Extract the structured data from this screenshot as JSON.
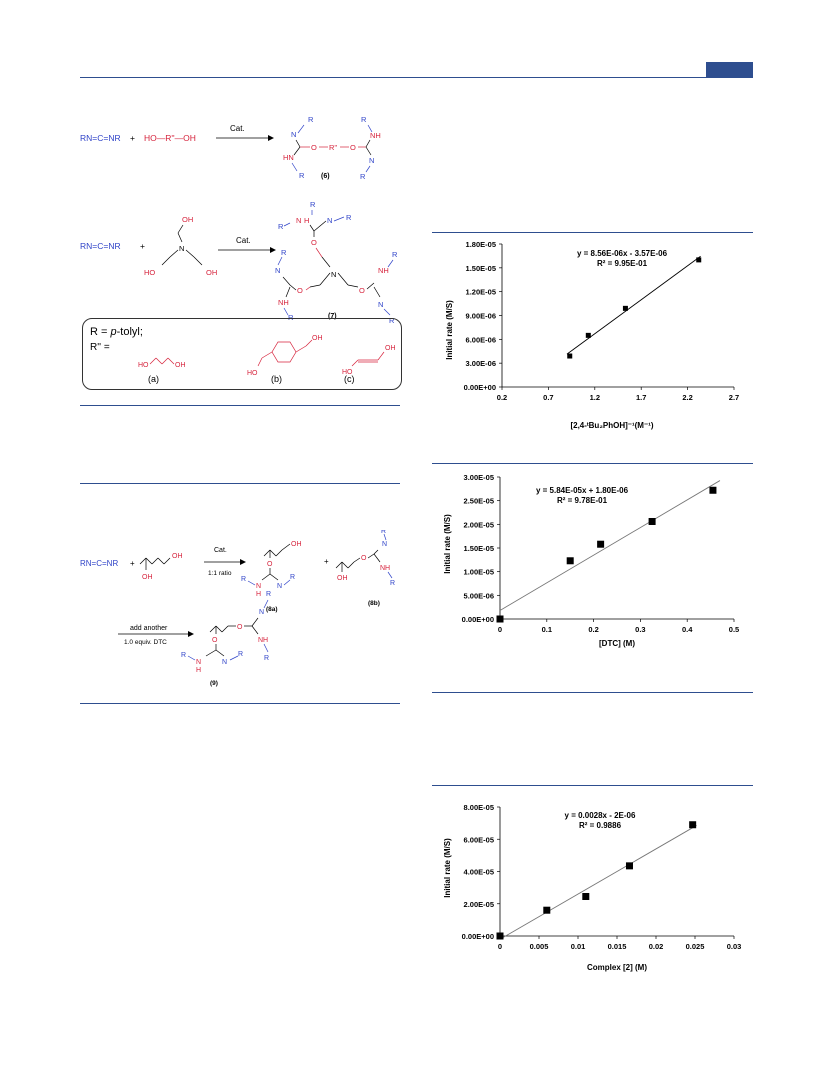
{
  "scheme1": {
    "reactant_carbodiimide": "RN=C=NR",
    "plus": "+",
    "diol": "HO—R''—OH",
    "catalyst": "Cat.",
    "product_label": "(6)"
  },
  "scheme2": {
    "reactant_carbodiimide": "RN=C=NR",
    "plus": "+",
    "catalyst": "Cat.",
    "product_label": "(7)"
  },
  "legend_box": {
    "r_def_prefix": "R = ",
    "r_def_italic": "p",
    "r_def_suffix": "-tolyl;",
    "rpp_label": "R'' =",
    "labels": [
      "(a)",
      "(b)",
      "(c)"
    ]
  },
  "scheme3": {
    "reactant_carbodiimide": "RN=C=NR",
    "plus": "+",
    "catalyst": "Cat.",
    "ratio": "1:1 ratio",
    "product_a": "(8a)",
    "product_b": "(8b)",
    "add_another": "add another",
    "equiv": "1.0 equiv. DTC",
    "product_9": "(9)"
  },
  "charts": {
    "chart1": {
      "equation": "y = 8.56E-06x - 3.57E-06",
      "r2": "R² = 9.95E-01",
      "ylabel": "Initial rate (M/S)",
      "xlabel": "[2,4-ᵗBu₂PhOH]⁻¹(M⁻¹)",
      "yticks": [
        "0.00E+00",
        "3.00E-06",
        "6.00E-06",
        "9.00E-06",
        "1.20E-05",
        "1.50E-05",
        "1.80E-05"
      ],
      "xticks": [
        "0.2",
        "0.7",
        "1.2",
        "1.7",
        "2.2",
        "2.7"
      ]
    },
    "chart2": {
      "equation": "y = 5.84E-05x + 1.80E-06",
      "r2": "R² = 9.78E-01",
      "ylabel": "Initial rate (M/S)",
      "xlabel": "[DTC] (M)",
      "yticks": [
        "0.00E+00",
        "5.00E-06",
        "1.00E-05",
        "1.50E-05",
        "2.00E-05",
        "2.50E-05",
        "3.00E-05"
      ],
      "xticks": [
        "0",
        "0.1",
        "0.2",
        "0.3",
        "0.4",
        "0.5"
      ]
    },
    "chart3": {
      "equation": "y = 0.0028x - 2E-06",
      "r2": "R² = 0.9886",
      "ylabel": "Initial rate (M/S)",
      "xlabel": "Complex [2] (M)",
      "yticks": [
        "0.00E+00",
        "2.00E-05",
        "4.00E-05",
        "6.00E-05",
        "8.00E-05"
      ],
      "xticks": [
        "0",
        "0.005",
        "0.01",
        "0.015",
        "0.02",
        "0.025",
        "0.03"
      ]
    }
  },
  "chart_data": [
    {
      "type": "scatter",
      "x": [
        0.93,
        1.13,
        1.53,
        2.32
      ],
      "y": [
        3.9e-06,
        6.5e-06,
        9.9e-06,
        1.6e-05
      ],
      "xlim": [
        0.2,
        2.7
      ],
      "ylim": [
        0,
        1.8e-05
      ],
      "trendline": {
        "slope": 8.56e-06,
        "intercept": -3.57e-06
      },
      "grid": false
    },
    {
      "type": "scatter",
      "x": [
        0,
        0.15,
        0.215,
        0.325,
        0.455
      ],
      "y": [
        0,
        1.23e-05,
        1.58e-05,
        2.06e-05,
        2.72e-05
      ],
      "xlim": [
        0,
        0.5
      ],
      "ylim": [
        0,
        3e-05
      ],
      "trendline": {
        "slope": 5.84e-05,
        "intercept": 1.8e-06
      },
      "grid": false
    },
    {
      "type": "scatter",
      "x": [
        0,
        0.006,
        0.011,
        0.0166,
        0.0247
      ],
      "y": [
        0,
        1.6e-05,
        2.45e-05,
        4.35e-05,
        6.9e-05
      ],
      "xlim": [
        0,
        0.03
      ],
      "ylim": [
        0,
        8e-05
      ],
      "trendline": {
        "slope": 0.0028,
        "intercept": -2e-06
      },
      "grid": false
    }
  ]
}
